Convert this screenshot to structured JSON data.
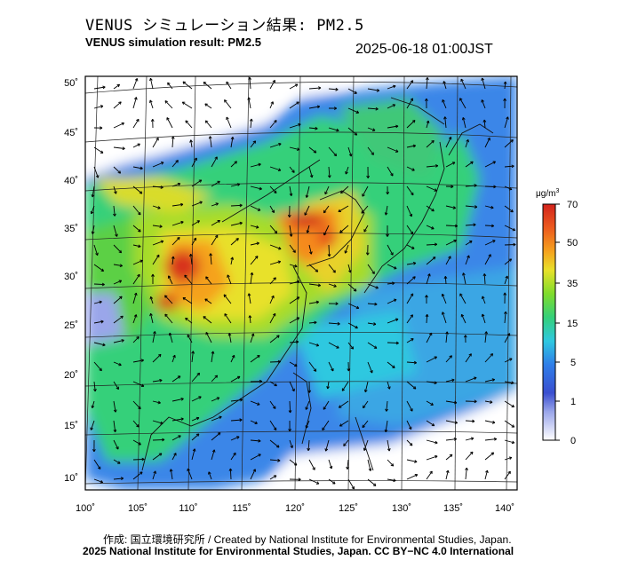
{
  "header": {
    "title_jp": "VENUS シミュレーション結果: PM2.5",
    "title_en": "VENUS simulation result: PM2.5",
    "timestamp": "2025-06-18 01:00JST"
  },
  "axes": {
    "lat_labels": [
      "50˚",
      "45˚",
      "40˚",
      "35˚",
      "30˚",
      "25˚",
      "20˚",
      "15˚",
      "10˚"
    ],
    "lon_labels": [
      "100˚",
      "105˚",
      "110˚",
      "115˚",
      "120˚",
      "125˚",
      "130˚",
      "135˚",
      "140˚"
    ]
  },
  "colorbar": {
    "unit": "μg/m",
    "unit_sup": "3",
    "ticks": [
      "70",
      "50",
      "35",
      "15",
      "5",
      "1",
      "0"
    ]
  },
  "colors": {
    "scale": [
      "#ffffff",
      "#3a4fd0",
      "#2f7ee8",
      "#2fc8e0",
      "#34d07a",
      "#7fdc2c",
      "#e8e12a",
      "#f5a21e",
      "#ec5a1e",
      "#d2231c"
    ]
  },
  "footer": {
    "credit_line": "作成: 国立環境研究所 / Created by National Institute for Environmental Studies, Japan.",
    "copyright_line": "2025 National Institute for Environmental Studies, Japan. CC BY−NC 4.0 International"
  }
}
